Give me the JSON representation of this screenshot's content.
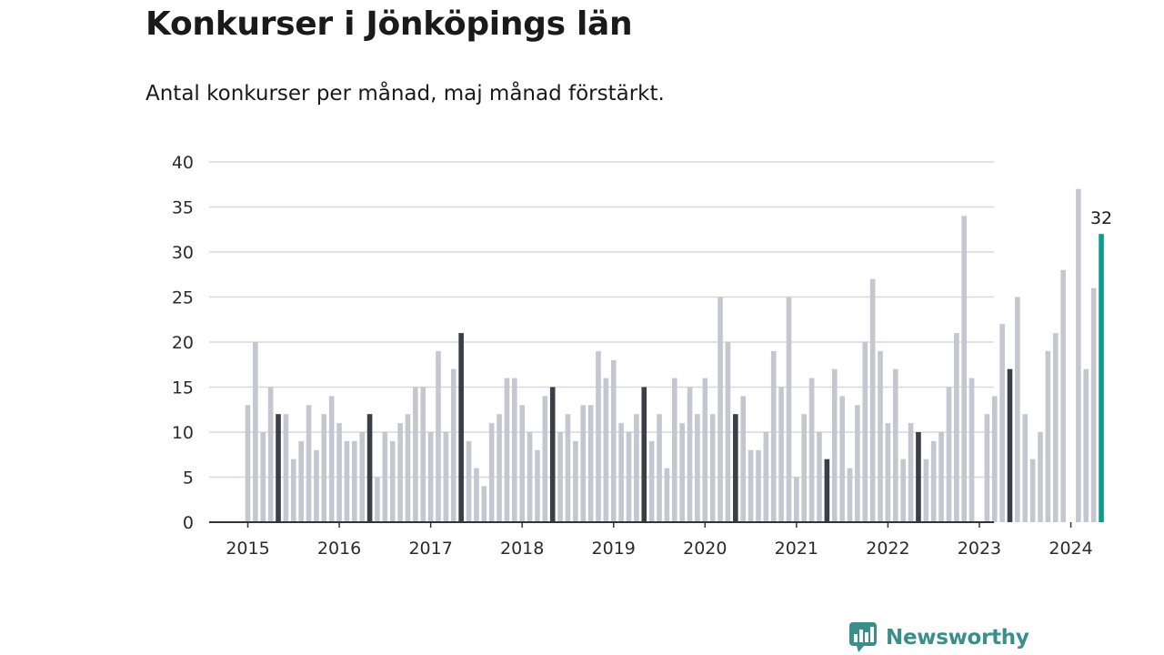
{
  "title": "Konkurser i Jönköpings län",
  "subtitle": "Antal konkurser per månad, maj månad förstärkt.",
  "brand": {
    "name": "Newsworthy",
    "icon": "newsworthy-logo-icon"
  },
  "colors": {
    "bar_default": "#c6c6d0",
    "bar_highlight": "#3d3d48",
    "bar_current": "#0e9a8c",
    "grid": "#d8d8de",
    "axis": "#333333",
    "brand": "#3a8f8c"
  },
  "chart_data": {
    "type": "bar",
    "title": "Konkurser i Jönköpings län",
    "subtitle": "Antal konkurser per månad, maj månad förstärkt.",
    "xlabel": "",
    "ylabel": "",
    "ylim": [
      0,
      40
    ],
    "yticks": [
      0,
      5,
      10,
      15,
      20,
      25,
      30,
      35,
      40
    ],
    "xticks": [
      "2015",
      "2016",
      "2017",
      "2018",
      "2019",
      "2020",
      "2021",
      "2022",
      "2023",
      "2024"
    ],
    "grid": true,
    "legend": "none",
    "highlight_month": "May",
    "years": [
      {
        "year": "2015",
        "values": [
          13,
          20,
          10,
          15,
          12,
          12,
          7,
          9,
          13,
          8,
          12,
          14
        ]
      },
      {
        "year": "2016",
        "values": [
          11,
          9,
          9,
          10,
          12,
          5,
          10,
          9,
          11,
          12,
          15,
          15
        ]
      },
      {
        "year": "2017",
        "values": [
          10,
          19,
          10,
          17,
          21,
          9,
          6,
          4,
          11,
          12,
          16,
          16
        ]
      },
      {
        "year": "2018",
        "values": [
          13,
          10,
          8,
          14,
          15,
          10,
          12,
          9,
          13,
          13,
          19,
          16
        ]
      },
      {
        "year": "2019",
        "values": [
          18,
          11,
          10,
          12,
          15,
          9,
          12,
          6,
          16,
          11,
          15,
          12
        ]
      },
      {
        "year": "2020",
        "values": [
          16,
          12,
          25,
          20,
          12,
          14,
          8,
          8,
          10,
          19,
          15,
          25
        ]
      },
      {
        "year": "2021",
        "values": [
          5,
          12,
          16,
          10,
          7,
          17,
          14,
          6,
          13,
          20,
          27,
          19
        ]
      },
      {
        "year": "2022",
        "values": [
          11,
          17,
          7,
          11,
          10,
          7,
          9,
          10,
          15,
          21,
          34,
          16
        ]
      },
      {
        "year": "2023",
        "values": [
          0,
          12,
          14,
          22,
          17,
          25,
          12,
          7,
          10,
          19,
          21,
          28
        ]
      },
      {
        "year": "2024",
        "values": [
          0,
          37,
          17,
          26,
          32
        ]
      }
    ],
    "annotations": [
      {
        "year": "2024",
        "month": "May",
        "value": 32,
        "text": "32"
      }
    ]
  }
}
